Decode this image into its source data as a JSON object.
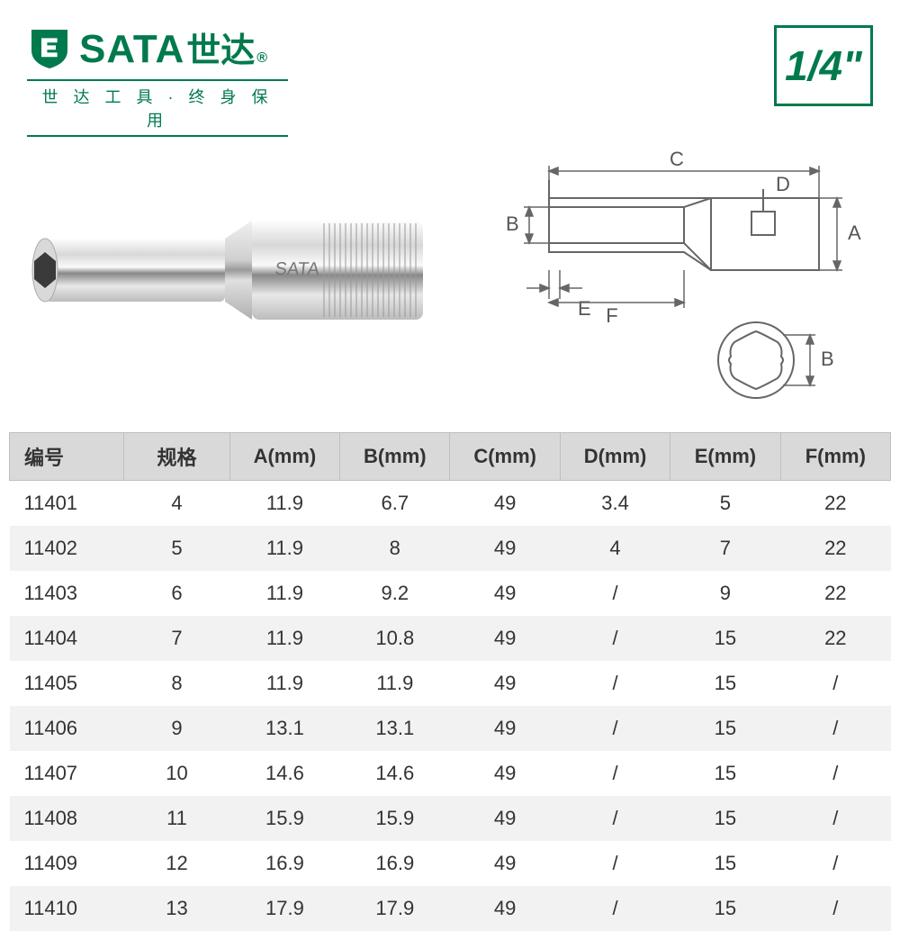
{
  "brand": {
    "english": "SATA",
    "chinese": "世达",
    "registered": "®",
    "tagline": "世 达 工 具 · 终 身 保 用",
    "color": "#007a4d"
  },
  "size_badge": "1/4\"",
  "diagram_labels": {
    "A": "A",
    "B": "B",
    "C": "C",
    "D": "D",
    "E": "E",
    "F": "F",
    "B2": "B"
  },
  "table": {
    "columns": [
      "编号",
      "规格",
      "A(mm)",
      "B(mm)",
      "C(mm)",
      "D(mm)",
      "E(mm)",
      "F(mm)"
    ],
    "col_widths": [
      "13%",
      "12%",
      "12.5%",
      "12.5%",
      "12.5%",
      "12.5%",
      "12.5%",
      "12.5%"
    ],
    "header_bg": "#d9d9d9",
    "row_alt_bg": "#f2f2f2",
    "rows": [
      [
        "11401",
        "4",
        "11.9",
        "6.7",
        "49",
        "3.4",
        "5",
        "22"
      ],
      [
        "11402",
        "5",
        "11.9",
        "8",
        "49",
        "4",
        "7",
        "22"
      ],
      [
        "11403",
        "6",
        "11.9",
        "9.2",
        "49",
        "/",
        "9",
        "22"
      ],
      [
        "11404",
        "7",
        "11.9",
        "10.8",
        "49",
        "/",
        "15",
        "22"
      ],
      [
        "11405",
        "8",
        "11.9",
        "11.9",
        "49",
        "/",
        "15",
        "/"
      ],
      [
        "11406",
        "9",
        "13.1",
        "13.1",
        "49",
        "/",
        "15",
        "/"
      ],
      [
        "11407",
        "10",
        "14.6",
        "14.6",
        "49",
        "/",
        "15",
        "/"
      ],
      [
        "11408",
        "11",
        "15.9",
        "15.9",
        "49",
        "/",
        "15",
        "/"
      ],
      [
        "11409",
        "12",
        "16.9",
        "16.9",
        "49",
        "/",
        "15",
        "/"
      ],
      [
        "11410",
        "13",
        "17.9",
        "17.9",
        "49",
        "/",
        "15",
        "/"
      ]
    ]
  }
}
